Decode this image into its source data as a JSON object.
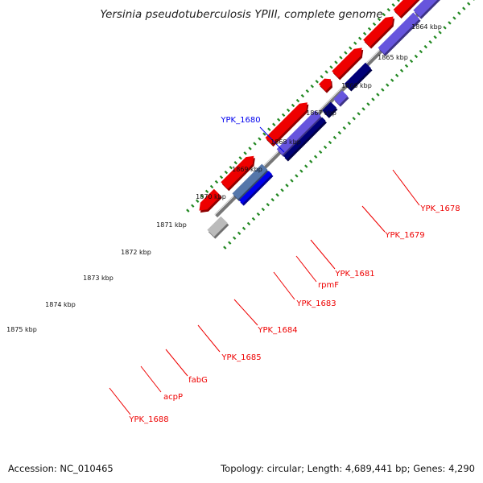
{
  "title": "Yersinia pseudotuberculosis YPIII, complete genome",
  "accession": "Accession: NC_010465",
  "summary": "Topology: circular; Length: 4,689,441 bp; Genes: 4,290",
  "colors": {
    "red": "#ee0000",
    "pink": "#ee8888",
    "blue": "#0000ee",
    "lightblue": "#6655dd",
    "navy": "#000077",
    "gray": "#bbbbbb",
    "yellow": "#eedd88",
    "teal": "#5577aa",
    "backbone": "#777777",
    "tick": "#228822"
  },
  "scale_labels": [
    "1864 kbp",
    "1865 kbp",
    "1866 kbp",
    "1867 kbp",
    "1868 kbp",
    "1869 kbp",
    "1870 kbp",
    "1871 kbp",
    "1872 kbp",
    "1873 kbp",
    "1874 kbp",
    "1875 kbp"
  ],
  "gene_labels": [
    {
      "text": "YPK_1680",
      "color": "blue"
    },
    {
      "text": "YPK_1678",
      "color": "red"
    },
    {
      "text": "YPK_1679",
      "color": "red"
    },
    {
      "text": "YPK_1681",
      "color": "red"
    },
    {
      "text": "rpmF",
      "color": "red"
    },
    {
      "text": "YPK_1683",
      "color": "red"
    },
    {
      "text": "YPK_1684",
      "color": "red"
    },
    {
      "text": "YPK_1685",
      "color": "red"
    },
    {
      "text": "fabG",
      "color": "red"
    },
    {
      "text": "acpP",
      "color": "red"
    },
    {
      "text": "YPK_1688",
      "color": "red"
    }
  ]
}
